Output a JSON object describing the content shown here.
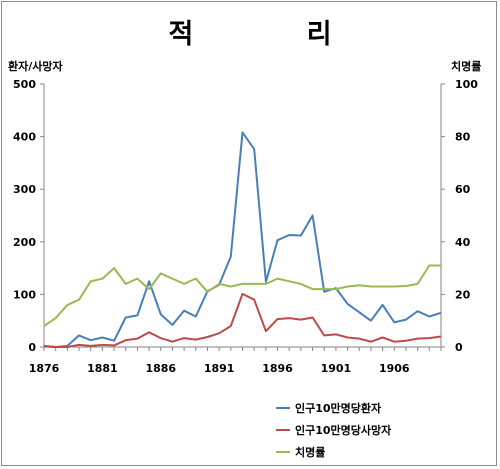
{
  "chart_data": {
    "type": "line",
    "title": "적   리",
    "ylabel_left": "환자/사망자",
    "ylabel_right": "치명률",
    "ylim_left": [
      0,
      500
    ],
    "yticks_left": [
      "0",
      "100",
      "200",
      "300",
      "400",
      "500"
    ],
    "ylim_right": [
      0,
      100
    ],
    "yticks_right": [
      "0",
      "20",
      "40",
      "60",
      "80",
      "100"
    ],
    "xlim": [
      1876,
      1910
    ],
    "xticks": [
      "1876",
      "1881",
      "1886",
      "1891",
      "1896",
      "1901",
      "1906"
    ],
    "legend_position": "bottom-right",
    "grid": false,
    "series": [
      {
        "name": "인구10만명당환자",
        "axis": "left",
        "color": "#4a7ebb",
        "x": [
          1876,
          1877,
          1878,
          1879,
          1880,
          1881,
          1882,
          1883,
          1884,
          1885,
          1886,
          1887,
          1888,
          1889,
          1890,
          1891,
          1892,
          1893,
          1894,
          1895,
          1896,
          1897,
          1898,
          1899,
          1900,
          1901,
          1902,
          1903,
          1904,
          1905,
          1906,
          1907,
          1908,
          1909,
          1910
        ],
        "values": [
          2,
          0,
          2,
          22,
          13,
          18,
          12,
          56,
          60,
          125,
          62,
          42,
          69,
          58,
          106,
          118,
          172,
          408,
          376,
          124,
          203,
          213,
          212,
          250,
          105,
          112,
          82,
          66,
          50,
          80,
          47,
          52,
          68,
          58,
          65
        ]
      },
      {
        "name": "인구10만명당사망자",
        "axis": "left",
        "color": "#be4b48",
        "x": [
          1876,
          1877,
          1878,
          1879,
          1880,
          1881,
          1882,
          1883,
          1884,
          1885,
          1886,
          1887,
          1888,
          1889,
          1890,
          1891,
          1892,
          1893,
          1894,
          1895,
          1896,
          1897,
          1898,
          1899,
          1900,
          1901,
          1902,
          1903,
          1904,
          1905,
          1906,
          1907,
          1908,
          1909,
          1910
        ],
        "values": [
          1,
          0,
          0,
          4,
          2,
          4,
          3,
          13,
          16,
          28,
          17,
          10,
          17,
          14,
          19,
          26,
          40,
          101,
          90,
          30,
          53,
          55,
          52,
          56,
          22,
          24,
          18,
          16,
          10,
          18,
          10,
          12,
          16,
          17,
          20
        ]
      },
      {
        "name": "치명률",
        "axis": "right",
        "color": "#98b954",
        "x": [
          1876,
          1877,
          1878,
          1879,
          1880,
          1881,
          1882,
          1883,
          1884,
          1885,
          1886,
          1887,
          1888,
          1889,
          1890,
          1891,
          1892,
          1893,
          1894,
          1895,
          1896,
          1897,
          1898,
          1899,
          1900,
          1901,
          1902,
          1903,
          1904,
          1905,
          1906,
          1907,
          1908,
          1909,
          1910
        ],
        "values": [
          8,
          11,
          16,
          18,
          25,
          26,
          30,
          24,
          26,
          22,
          28,
          26,
          24,
          26,
          21,
          24,
          23,
          24,
          24,
          24,
          26,
          25,
          24,
          22,
          22,
          22,
          23,
          23.5,
          23,
          23,
          23,
          23.2,
          24,
          31,
          31
        ]
      }
    ]
  }
}
